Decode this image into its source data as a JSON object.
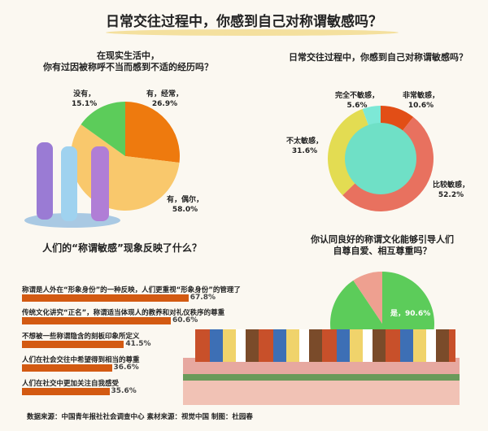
{
  "title": "日常交往过程中，你感到自己对称谓敏感吗？",
  "chart_data": [
    {
      "type": "pie",
      "title": "在现实生活中，\n你有过因被称呼不当而感到不适的经历吗？",
      "title_lines": [
        "在现实生活中，",
        "你有过因被称呼不当而感到不适的经历吗？"
      ],
      "slices": [
        {
          "label": "有，经常，",
          "value": 26.9,
          "text": "26.9%",
          "color": "#ee7a0e"
        },
        {
          "label": "有，偶尔，",
          "value": 58.0,
          "text": "58.0%",
          "color": "#f9c86c"
        },
        {
          "label": "没有，",
          "value": 15.1,
          "text": "15.1%",
          "color": "#5ccc5a"
        }
      ]
    },
    {
      "type": "pie",
      "variant": "donut",
      "title": "日常交往过程中，你感到自己对称谓敏感吗？",
      "slices": [
        {
          "label": "非常敏感，",
          "value": 10.6,
          "text": "10.6%",
          "color": "#e24e16"
        },
        {
          "label": "比较敏感，",
          "value": 52.2,
          "text": "52.2%",
          "color": "#e8715f"
        },
        {
          "label": "不太敏感，",
          "value": 31.6,
          "text": "31.6%",
          "color": "#e3dc52"
        },
        {
          "label": "完全不敏感，",
          "value": 5.6,
          "text": "5.6%",
          "color": "#7de8d6"
        }
      ]
    },
    {
      "type": "bar",
      "orientation": "horizontal",
      "title": "人们的“称谓敏感”现象反映了什么？",
      "categories": [
        "称谓是人外在“形象身份”的一种反映，人们更重视“形象身份”的管理了",
        "传统文化讲究“正名”，称谓适当体现人的教养和对礼仪秩序的尊重",
        "不想被一些称谓隐含的刻板印象所定义",
        "人们在社会交往中希望得到相当的尊重",
        "人们在社交中更加关注自我感受"
      ],
      "values": [
        67.8,
        60.6,
        41.5,
        36.6,
        35.6
      ],
      "value_labels": [
        "67.8%",
        "60.6%",
        "41.5%",
        "36.6%",
        "35.6%"
      ],
      "color": "#d35a12"
    },
    {
      "type": "pie",
      "title_lines": [
        "你认同良好的称谓文化能够引导人们",
        "自尊自爱、相互尊重吗？"
      ],
      "slices": [
        {
          "label": "是，90.6%",
          "value": 90.6,
          "color": "#5ccc5a"
        },
        {
          "label": "",
          "value": 9.4,
          "color": "#eea090"
        }
      ]
    }
  ],
  "footer": "数据来源：中国青年报社社会调查中心  素材来源：视觉中国  制图：杜园春"
}
